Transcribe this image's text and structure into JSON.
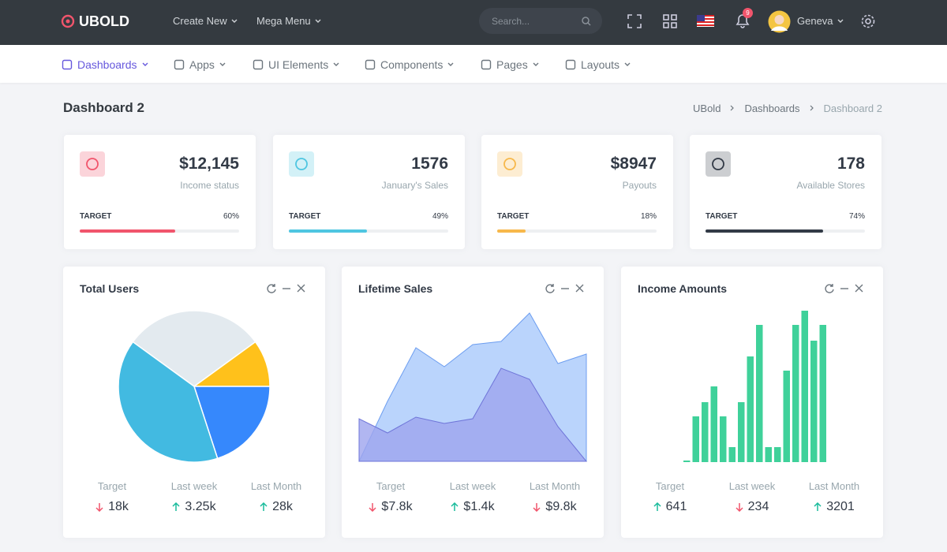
{
  "header": {
    "brand": "UBOLD",
    "nav": [
      "Create New",
      "Mega Menu"
    ],
    "search_placeholder": "Search...",
    "notification_count": "9",
    "user": "Geneva"
  },
  "menu": {
    "items": [
      "Dashboards",
      "Apps",
      "UI Elements",
      "Components",
      "Pages",
      "Layouts"
    ],
    "active": 0
  },
  "page": {
    "title": "Dashboard 2",
    "breadcrumb": [
      "UBold",
      "Dashboards",
      "Dashboard 2"
    ]
  },
  "stats": [
    {
      "value": "$12,145",
      "label": "Income status",
      "target_label": "TARGET",
      "progress": {
        "value": 60,
        "label": "60%"
      },
      "color": "#f1556c"
    },
    {
      "value": "1576",
      "label": "January's Sales",
      "target_label": "TARGET",
      "progress": {
        "value": 49,
        "label": "49%"
      },
      "color": "#4fc6e1"
    },
    {
      "value": "$8947",
      "label": "Payouts",
      "target_label": "TARGET",
      "progress": {
        "value": 18,
        "label": "18%"
      },
      "color": "#f7b84b"
    },
    {
      "value": "178",
      "label": "Available Stores",
      "target_label": "TARGET",
      "progress": {
        "value": 74,
        "label": "74%"
      },
      "color": "#323a46"
    }
  ],
  "panels": [
    {
      "title": "Total Users",
      "chart": {
        "type": "pie",
        "categories": [
          null,
          null,
          null,
          null
        ],
        "values": [
          30,
          10,
          20,
          40
        ],
        "colors": [
          "#e3eaef",
          "#ffc11b",
          "#3688fc",
          "#42bae1"
        ]
      },
      "footer": [
        {
          "label": "Target",
          "value": "18k",
          "trend": "down"
        },
        {
          "label": "Last week",
          "value": "3.25k",
          "trend": "up"
        },
        {
          "label": "Last Month",
          "value": "28k",
          "trend": "up"
        }
      ]
    },
    {
      "title": "Lifetime Sales",
      "chart": {
        "type": "area",
        "categories": [
          null,
          null,
          null,
          null,
          null,
          null,
          null,
          null,
          null
        ],
        "ylim": [
          0,
          100
        ],
        "series": [
          {
            "color": "#a9c9fb",
            "values": [
              0,
              38,
              72,
              60,
              74,
              76,
              94,
              62,
              68
            ]
          },
          {
            "color": "#9ea4ee",
            "values": [
              27,
              18,
              28,
              24,
              27,
              59,
              52,
              22,
              0
            ]
          }
        ]
      },
      "footer": [
        {
          "label": "Target",
          "value": "$7.8k",
          "trend": "down"
        },
        {
          "label": "Last week",
          "value": "$1.4k",
          "trend": "up"
        },
        {
          "label": "Last Month",
          "value": "$9.8k",
          "trend": "down"
        }
      ]
    },
    {
      "title": "Income Amounts",
      "chart": {
        "type": "bar",
        "categories": [
          null,
          null,
          null,
          null,
          null,
          null,
          null,
          null,
          null,
          null,
          null,
          null,
          null,
          null,
          null,
          null
        ],
        "ylim": [
          0,
          200
        ],
        "color": "#3fd19a",
        "values": [
          2,
          58,
          76,
          96,
          58,
          19,
          76,
          134,
          174,
          19,
          19,
          116,
          174,
          192,
          154,
          174
        ]
      },
      "footer": [
        {
          "label": "Target",
          "value": "641",
          "trend": "up"
        },
        {
          "label": "Last week",
          "value": "234",
          "trend": "down"
        },
        {
          "label": "Last Month",
          "value": "3201",
          "trend": "up"
        }
      ]
    }
  ]
}
